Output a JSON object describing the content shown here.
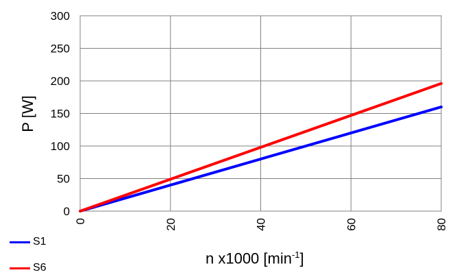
{
  "chart_data": {
    "type": "line",
    "title": "",
    "xlabel": {
      "main": "n x1000  [min",
      "sup": "-1",
      "close": "]"
    },
    "ylabel": "P [W]",
    "xlim": [
      0,
      80
    ],
    "ylim": [
      0,
      300
    ],
    "xticks": [
      "0",
      "20",
      "40",
      "60",
      "80"
    ],
    "yticks": [
      "0",
      "50",
      "100",
      "150",
      "200",
      "250",
      "300"
    ],
    "grid": true,
    "legend_position": "bottom-left",
    "series": [
      {
        "name": "S1",
        "color": "#0000ff",
        "x": [
          0,
          80
        ],
        "y": [
          0,
          160
        ]
      },
      {
        "name": "S6",
        "color": "#ff0000",
        "x": [
          0,
          80
        ],
        "y": [
          0,
          196
        ]
      }
    ]
  }
}
